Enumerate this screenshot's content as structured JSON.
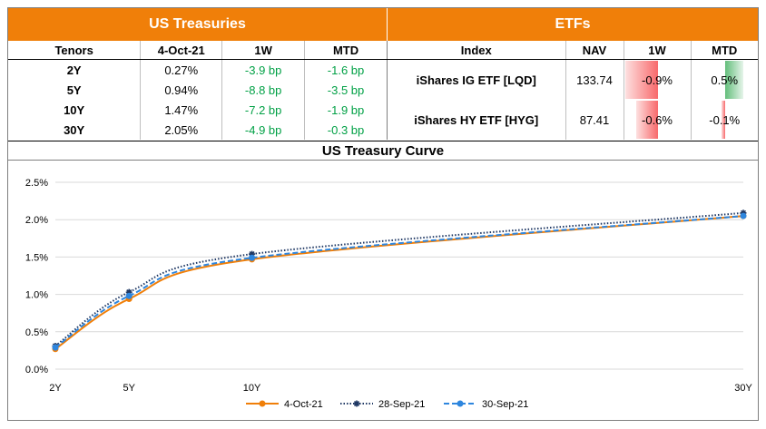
{
  "treasuries": {
    "title": "US Treasuries",
    "headers": [
      "Tenors",
      "4-Oct-21",
      "1W",
      "MTD"
    ],
    "rows": [
      {
        "tenor": "2Y",
        "yield": "0.27%",
        "w1": "-3.9 bp",
        "mtd": "-1.6 bp"
      },
      {
        "tenor": "5Y",
        "yield": "0.94%",
        "w1": "-8.8 bp",
        "mtd": "-3.5 bp"
      },
      {
        "tenor": "10Y",
        "yield": "1.47%",
        "w1": "-7.2 bp",
        "mtd": "-1.9 bp"
      },
      {
        "tenor": "30Y",
        "yield": "2.05%",
        "w1": "-4.9 bp",
        "mtd": "-0.3 bp"
      }
    ]
  },
  "etfs": {
    "title": "ETFs",
    "headers": [
      "Index",
      "NAV",
      "1W",
      "MTD"
    ],
    "rows": [
      {
        "index": "iShares IG ETF [LQD]",
        "nav": "133.74",
        "w1": "-0.9%",
        "mtd": "0.5%",
        "w1_value": -0.9,
        "mtd_value": 0.5
      },
      {
        "index": "iShares HY ETF [HYG]",
        "nav": "87.41",
        "w1": "-0.6%",
        "mtd": "-0.1%",
        "w1_value": -0.6,
        "mtd_value": -0.1
      }
    ],
    "colors": {
      "negative": "#f8696b",
      "positive": "#63be7b"
    }
  },
  "chart_data": {
    "type": "line",
    "title": "US Treasury Curve",
    "x": [
      2,
      5,
      10,
      30
    ],
    "x_tick_labels": [
      "2Y",
      "5Y",
      "10Y",
      "30Y"
    ],
    "xlim": [
      2,
      30
    ],
    "ylim": [
      0,
      2.5
    ],
    "y_ticks": [
      0,
      0.5,
      1.0,
      1.5,
      2.0,
      2.5
    ],
    "y_tick_labels": [
      "0.0%",
      "0.5%",
      "1.0%",
      "1.5%",
      "2.0%",
      "2.5%"
    ],
    "grid": true,
    "legend": "bottom",
    "series": [
      {
        "name": "4-Oct-21",
        "values": [
          0.27,
          0.94,
          1.47,
          2.05
        ],
        "color": "#f07f09",
        "style": "solid"
      },
      {
        "name": "28-Sep-21",
        "values": [
          0.31,
          1.03,
          1.54,
          2.09
        ],
        "color": "#1f3864",
        "style": "dotted"
      },
      {
        "name": "30-Sep-21",
        "values": [
          0.29,
          0.98,
          1.49,
          2.05
        ],
        "color": "#2e86de",
        "style": "dashed"
      }
    ]
  }
}
